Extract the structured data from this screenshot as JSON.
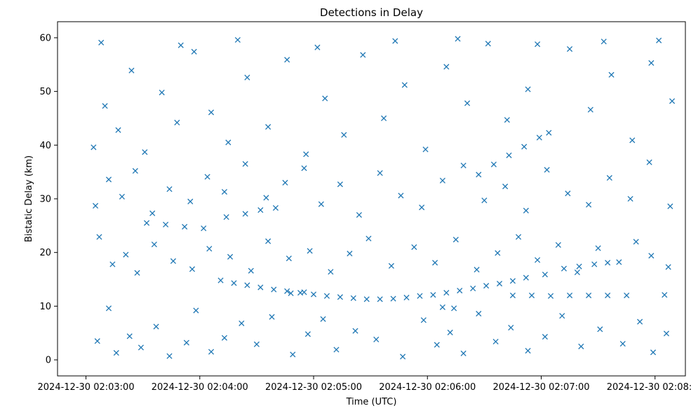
{
  "chart_data": {
    "type": "scatter",
    "title": "Detections in Delay",
    "xlabel": "Time (UTC)",
    "ylabel": "Bistatic Delay (km)",
    "x_unit": "timestamp (UTC)",
    "xlim": [
      "2024-12-30 02:02:45",
      "2024-12-30 02:08:16"
    ],
    "ylim": [
      -2.99,
      62.99
    ],
    "xticks": [
      {
        "value": "2024-12-30 02:03:00",
        "label": "2024-12-30 02:03:00"
      },
      {
        "value": "2024-12-30 02:04:00",
        "label": "2024-12-30 02:04:00"
      },
      {
        "value": "2024-12-30 02:05:00",
        "label": "2024-12-30 02:05:00"
      },
      {
        "value": "2024-12-30 02:06:00",
        "label": "2024-12-30 02:06:00"
      },
      {
        "value": "2024-12-30 02:07:00",
        "label": "2024-12-30 02:07:00"
      },
      {
        "value": "2024-12-30 02:08:00",
        "label": "2024-12-30 02:08:00"
      }
    ],
    "yticks": [
      {
        "value": 0,
        "label": "0"
      },
      {
        "value": 10,
        "label": "10"
      },
      {
        "value": 20,
        "label": "20"
      },
      {
        "value": 30,
        "label": "30"
      },
      {
        "value": 40,
        "label": "40"
      },
      {
        "value": 50,
        "label": "50"
      },
      {
        "value": 60,
        "label": "60"
      }
    ],
    "grid": false,
    "legend": false,
    "marker": "x",
    "color": "#1f77b4",
    "series": [
      {
        "points": [
          [
            "2024-12-30 02:04:11",
            14.8
          ],
          [
            "2024-12-30 02:04:18",
            14.3
          ],
          [
            "2024-12-30 02:04:25",
            13.9
          ],
          [
            "2024-12-30 02:04:32",
            13.5
          ],
          [
            "2024-12-30 02:04:39",
            13.1
          ],
          [
            "2024-12-30 02:04:46",
            12.8
          ],
          [
            "2024-12-30 02:04:53",
            12.5
          ],
          [
            "2024-12-30 02:05:00",
            12.2
          ],
          [
            "2024-12-30 02:05:07",
            11.9
          ],
          [
            "2024-12-30 02:05:14",
            11.7
          ],
          [
            "2024-12-30 02:05:21",
            11.5
          ],
          [
            "2024-12-30 02:05:28",
            11.3
          ],
          [
            "2024-12-30 02:05:35",
            11.3
          ],
          [
            "2024-12-30 02:05:42",
            11.4
          ],
          [
            "2024-12-30 02:05:49",
            11.6
          ],
          [
            "2024-12-30 02:05:56",
            11.9
          ],
          [
            "2024-12-30 02:06:03",
            12.1
          ],
          [
            "2024-12-30 02:06:10",
            12.5
          ],
          [
            "2024-12-30 02:06:17",
            12.9
          ],
          [
            "2024-12-30 02:06:24",
            13.3
          ],
          [
            "2024-12-30 02:06:31",
            13.8
          ],
          [
            "2024-12-30 02:06:38",
            14.2
          ],
          [
            "2024-12-30 02:06:45",
            14.7
          ],
          [
            "2024-12-30 02:06:52",
            15.3
          ],
          [
            "2024-12-30 02:07:02",
            15.9
          ],
          [
            "2024-12-30 02:07:12",
            17.0
          ],
          [
            "2024-12-30 02:07:20",
            17.4
          ],
          [
            "2024-12-30 02:07:28",
            17.8
          ],
          [
            "2024-12-30 02:07:35",
            18.1
          ],
          [
            "2024-12-30 02:03:32",
            25.5
          ],
          [
            "2024-12-30 02:03:42",
            25.2
          ],
          [
            "2024-12-30 02:03:52",
            24.8
          ],
          [
            "2024-12-30 02:04:02",
            24.5
          ],
          [
            "2024-12-30 02:04:14",
            26.6
          ],
          [
            "2024-12-30 02:04:24",
            27.2
          ],
          [
            "2024-12-30 02:04:32",
            27.9
          ],
          [
            "2024-12-30 02:04:40",
            28.3
          ],
          [
            "2024-12-30 02:06:27",
            34.5
          ],
          [
            "2024-12-30 02:06:35",
            36.4
          ],
          [
            "2024-12-30 02:06:43",
            38.1
          ],
          [
            "2024-12-30 02:06:51",
            39.7
          ],
          [
            "2024-12-30 02:06:59",
            41.4
          ],
          [
            "2024-12-30 02:06:45",
            12.0
          ],
          [
            "2024-12-30 02:06:55",
            12.0
          ],
          [
            "2024-12-30 02:07:05",
            11.9
          ],
          [
            "2024-12-30 02:07:15",
            12.0
          ],
          [
            "2024-12-30 02:07:25",
            12.0
          ],
          [
            "2024-12-30 02:07:35",
            12.0
          ],
          [
            "2024-12-30 02:07:45",
            12.0
          ],
          [
            "2024-12-30 02:08:05",
            12.1
          ],
          [
            "2024-12-30 02:04:48",
            12.4
          ],
          [
            "2024-12-30 02:04:55",
            12.6
          ],
          [
            "2024-12-30 02:06:08",
            9.8
          ],
          [
            "2024-12-30 02:06:14",
            9.6
          ],
          [
            "2024-12-30 02:03:06",
            3.5
          ],
          [
            "2024-12-30 02:03:12",
            9.6
          ],
          [
            "2024-12-30 02:03:16",
            1.3
          ],
          [
            "2024-12-30 02:03:23",
            4.4
          ],
          [
            "2024-12-30 02:03:29",
            2.3
          ],
          [
            "2024-12-30 02:03:37",
            6.2
          ],
          [
            "2024-12-30 02:03:44",
            0.7
          ],
          [
            "2024-12-30 02:03:53",
            3.2
          ],
          [
            "2024-12-30 02:03:58",
            9.2
          ],
          [
            "2024-12-30 02:04:06",
            1.5
          ],
          [
            "2024-12-30 02:04:13",
            4.1
          ],
          [
            "2024-12-30 02:04:22",
            6.8
          ],
          [
            "2024-12-30 02:04:30",
            2.9
          ],
          [
            "2024-12-30 02:04:38",
            8.0
          ],
          [
            "2024-12-30 02:04:49",
            1.0
          ],
          [
            "2024-12-30 02:04:57",
            4.8
          ],
          [
            "2024-12-30 02:05:05",
            7.6
          ],
          [
            "2024-12-30 02:05:12",
            1.9
          ],
          [
            "2024-12-30 02:05:22",
            5.4
          ],
          [
            "2024-12-30 02:05:33",
            3.8
          ],
          [
            "2024-12-30 02:05:47",
            0.6
          ],
          [
            "2024-12-30 02:05:58",
            7.4
          ],
          [
            "2024-12-30 02:06:05",
            2.8
          ],
          [
            "2024-12-30 02:06:12",
            5.1
          ],
          [
            "2024-12-30 02:06:19",
            1.2
          ],
          [
            "2024-12-30 02:06:27",
            8.6
          ],
          [
            "2024-12-30 02:06:36",
            3.4
          ],
          [
            "2024-12-30 02:06:44",
            6.0
          ],
          [
            "2024-12-30 02:06:53",
            1.7
          ],
          [
            "2024-12-30 02:07:02",
            4.3
          ],
          [
            "2024-12-30 02:07:11",
            8.2
          ],
          [
            "2024-12-30 02:07:21",
            2.5
          ],
          [
            "2024-12-30 02:07:31",
            5.7
          ],
          [
            "2024-12-30 02:07:43",
            3.0
          ],
          [
            "2024-12-30 02:07:52",
            7.1
          ],
          [
            "2024-12-30 02:07:59",
            1.4
          ],
          [
            "2024-12-30 02:08:06",
            4.9
          ],
          [
            "2024-12-30 02:03:07",
            22.9
          ],
          [
            "2024-12-30 02:03:14",
            17.8
          ],
          [
            "2024-12-30 02:03:21",
            19.6
          ],
          [
            "2024-12-30 02:03:27",
            16.2
          ],
          [
            "2024-12-30 02:03:36",
            21.5
          ],
          [
            "2024-12-30 02:03:46",
            18.4
          ],
          [
            "2024-12-30 02:03:56",
            16.9
          ],
          [
            "2024-12-30 02:04:05",
            20.7
          ],
          [
            "2024-12-30 02:04:16",
            19.2
          ],
          [
            "2024-12-30 02:04:27",
            16.6
          ],
          [
            "2024-12-30 02:04:36",
            22.1
          ],
          [
            "2024-12-30 02:04:47",
            18.9
          ],
          [
            "2024-12-30 02:04:58",
            20.3
          ],
          [
            "2024-12-30 02:05:09",
            16.4
          ],
          [
            "2024-12-30 02:05:19",
            19.8
          ],
          [
            "2024-12-30 02:05:29",
            22.6
          ],
          [
            "2024-12-30 02:05:41",
            17.5
          ],
          [
            "2024-12-30 02:05:53",
            21.0
          ],
          [
            "2024-12-30 02:06:04",
            18.1
          ],
          [
            "2024-12-30 02:06:15",
            22.4
          ],
          [
            "2024-12-30 02:06:26",
            16.8
          ],
          [
            "2024-12-30 02:06:37",
            19.9
          ],
          [
            "2024-12-30 02:06:48",
            22.9
          ],
          [
            "2024-12-30 02:06:58",
            18.6
          ],
          [
            "2024-12-30 02:07:09",
            21.4
          ],
          [
            "2024-12-30 02:07:19",
            16.3
          ],
          [
            "2024-12-30 02:07:30",
            20.8
          ],
          [
            "2024-12-30 02:07:41",
            18.2
          ],
          [
            "2024-12-30 02:07:50",
            22.0
          ],
          [
            "2024-12-30 02:07:58",
            19.4
          ],
          [
            "2024-12-30 02:08:07",
            17.3
          ],
          [
            "2024-12-30 02:03:05",
            28.7
          ],
          [
            "2024-12-30 02:03:12",
            33.6
          ],
          [
            "2024-12-30 02:03:19",
            30.4
          ],
          [
            "2024-12-30 02:03:26",
            35.2
          ],
          [
            "2024-12-30 02:03:35",
            27.3
          ],
          [
            "2024-12-30 02:03:44",
            31.8
          ],
          [
            "2024-12-30 02:03:55",
            29.5
          ],
          [
            "2024-12-30 02:04:04",
            34.1
          ],
          [
            "2024-12-30 02:04:13",
            31.3
          ],
          [
            "2024-12-30 02:04:24",
            36.5
          ],
          [
            "2024-12-30 02:04:35",
            30.2
          ],
          [
            "2024-12-30 02:04:45",
            33.0
          ],
          [
            "2024-12-30 02:04:55",
            35.7
          ],
          [
            "2024-12-30 02:05:04",
            29.0
          ],
          [
            "2024-12-30 02:05:14",
            32.7
          ],
          [
            "2024-12-30 02:05:24",
            27.0
          ],
          [
            "2024-12-30 02:05:35",
            34.8
          ],
          [
            "2024-12-30 02:05:46",
            30.6
          ],
          [
            "2024-12-30 02:05:57",
            28.4
          ],
          [
            "2024-12-30 02:06:08",
            33.4
          ],
          [
            "2024-12-30 02:06:19",
            36.2
          ],
          [
            "2024-12-30 02:06:30",
            29.7
          ],
          [
            "2024-12-30 02:06:41",
            32.3
          ],
          [
            "2024-12-30 02:06:52",
            27.8
          ],
          [
            "2024-12-30 02:07:03",
            35.4
          ],
          [
            "2024-12-30 02:07:14",
            31.0
          ],
          [
            "2024-12-30 02:07:25",
            28.9
          ],
          [
            "2024-12-30 02:07:36",
            33.9
          ],
          [
            "2024-12-30 02:07:47",
            30.0
          ],
          [
            "2024-12-30 02:07:57",
            36.8
          ],
          [
            "2024-12-30 02:08:08",
            28.6
          ],
          [
            "2024-12-30 02:03:04",
            39.6
          ],
          [
            "2024-12-30 02:03:10",
            47.3
          ],
          [
            "2024-12-30 02:03:17",
            42.8
          ],
          [
            "2024-12-30 02:03:24",
            53.9
          ],
          [
            "2024-12-30 02:03:31",
            38.7
          ],
          [
            "2024-12-30 02:03:40",
            49.8
          ],
          [
            "2024-12-30 02:03:48",
            44.2
          ],
          [
            "2024-12-30 02:03:57",
            57.4
          ],
          [
            "2024-12-30 02:04:06",
            46.1
          ],
          [
            "2024-12-30 02:04:15",
            40.5
          ],
          [
            "2024-12-30 02:04:25",
            52.6
          ],
          [
            "2024-12-30 02:04:36",
            43.4
          ],
          [
            "2024-12-30 02:04:46",
            55.9
          ],
          [
            "2024-12-30 02:04:56",
            38.3
          ],
          [
            "2024-12-30 02:05:06",
            48.7
          ],
          [
            "2024-12-30 02:05:16",
            41.9
          ],
          [
            "2024-12-30 02:05:26",
            56.8
          ],
          [
            "2024-12-30 02:05:37",
            45.0
          ],
          [
            "2024-12-30 02:05:48",
            51.2
          ],
          [
            "2024-12-30 02:05:59",
            39.2
          ],
          [
            "2024-12-30 02:06:10",
            54.6
          ],
          [
            "2024-12-30 02:06:21",
            47.8
          ],
          [
            "2024-12-30 02:06:32",
            58.9
          ],
          [
            "2024-12-30 02:06:42",
            44.7
          ],
          [
            "2024-12-30 02:06:53",
            50.4
          ],
          [
            "2024-12-30 02:07:04",
            42.3
          ],
          [
            "2024-12-30 02:07:15",
            57.9
          ],
          [
            "2024-12-30 02:07:26",
            46.6
          ],
          [
            "2024-12-30 02:07:37",
            53.1
          ],
          [
            "2024-12-30 02:07:48",
            40.9
          ],
          [
            "2024-12-30 02:07:58",
            55.3
          ],
          [
            "2024-12-30 02:08:09",
            48.2
          ],
          [
            "2024-12-30 02:03:08",
            59.1
          ],
          [
            "2024-12-30 02:03:50",
            58.6
          ],
          [
            "2024-12-30 02:04:20",
            59.6
          ],
          [
            "2024-12-30 02:05:02",
            58.2
          ],
          [
            "2024-12-30 02:05:43",
            59.4
          ],
          [
            "2024-12-30 02:06:16",
            59.8
          ],
          [
            "2024-12-30 02:06:58",
            58.8
          ],
          [
            "2024-12-30 02:07:33",
            59.3
          ],
          [
            "2024-12-30 02:08:02",
            59.5
          ]
        ]
      }
    ]
  }
}
